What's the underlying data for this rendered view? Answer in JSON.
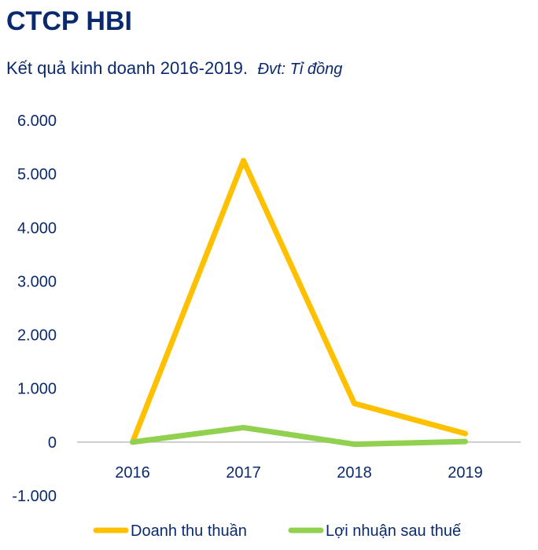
{
  "title": "CTCP HBI",
  "subtitle": "Kết quả kinh doanh 2016-2019.",
  "unit_note": "Đvt: Tỉ đồng",
  "colors": {
    "revenue": "#FFC000",
    "profit": "#92D050",
    "text": "#0B2A6E",
    "axis": "#BFBFBF"
  },
  "chart_data": {
    "type": "line",
    "title": "CTCP HBI",
    "subtitle": "Kết quả kinh doanh 2016-2019. Đvt: Tỉ đồng",
    "categories": [
      "2016",
      "2017",
      "2018",
      "2019"
    ],
    "ylim": [
      -1000,
      6000
    ],
    "yticks": [
      6000,
      5000,
      4000,
      3000,
      2000,
      1000,
      0,
      -1000
    ],
    "ytick_labels": [
      "6.000",
      "5.000",
      "4.000",
      "3.000",
      "2.000",
      "1.000",
      "0",
      "-1.000"
    ],
    "grid": false,
    "legend_position": "bottom",
    "series": [
      {
        "name": "Doanh thu thuần",
        "values": [
          0,
          5250,
          720,
          160
        ]
      },
      {
        "name": "Lợi nhuận sau thuế",
        "values": [
          0,
          270,
          -40,
          10
        ]
      }
    ]
  }
}
